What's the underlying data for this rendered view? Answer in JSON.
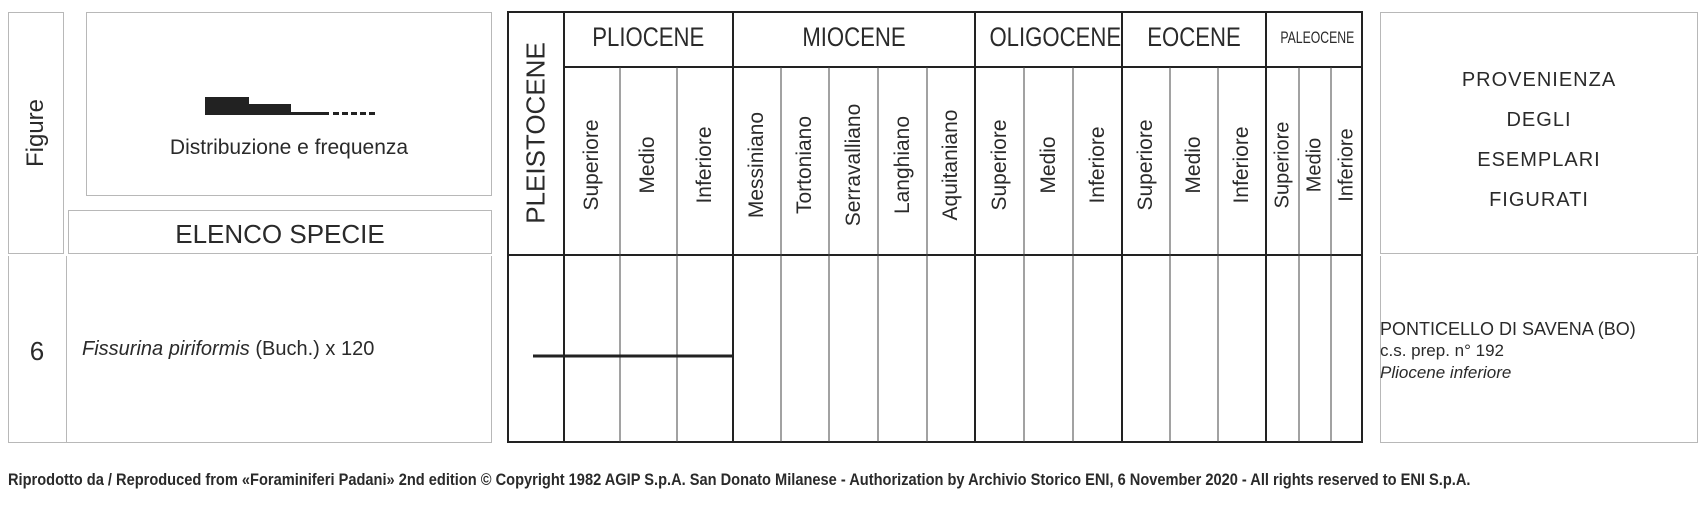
{
  "left_panel": {
    "figure_header": "Figure",
    "legend_caption": "Distribuzione e frequenza",
    "species_header": "ELENCO SPECIE"
  },
  "chart": {
    "pleistocene": "PLEISTOCENE",
    "epochs": [
      {
        "name": "PLIOCENE",
        "stages": [
          "Superiore",
          "Medio",
          "Inferiore"
        ]
      },
      {
        "name": "MIOCENE",
        "stages": [
          "Messiniano",
          "Tortoniano",
          "Serravalliano",
          "Langhiano",
          "Aquitaniano"
        ]
      },
      {
        "name": "OLIGOCENE",
        "stages": [
          "Superiore",
          "Medio",
          "Inferiore"
        ]
      },
      {
        "name": "EOCENE",
        "stages": [
          "Superiore",
          "Medio",
          "Inferiore"
        ]
      },
      {
        "name": "PALEOCENE",
        "stages": [
          "Superiore",
          "Medio",
          "Inferiore"
        ]
      }
    ]
  },
  "right_panel": {
    "header_lines": [
      "PROVENIENZA",
      "DEGLI",
      "ESEMPLARI",
      "FIGURATI"
    ]
  },
  "row": {
    "figure_number": "6",
    "species_genus": "Fissurina piriformis",
    "species_rest": " (Buch.) x 120",
    "locality": "PONTICELLO DI SAVENA (BO)",
    "prep": "c.s. prep. n° 192",
    "age": "Pliocene inferiore",
    "range_note": "from Pleistocene through Pliocene Inferiore"
  },
  "footer": {
    "credit": "Riprodotto da / Reproduced from «Foraminiferi Padani» 2nd edition © Copyright 1982 AGIP S.p.A. San Donato Milanese - Authorization by Archivio Storico ENI, 6 November 2020 - All rights reserved to ENI S.p.A."
  }
}
